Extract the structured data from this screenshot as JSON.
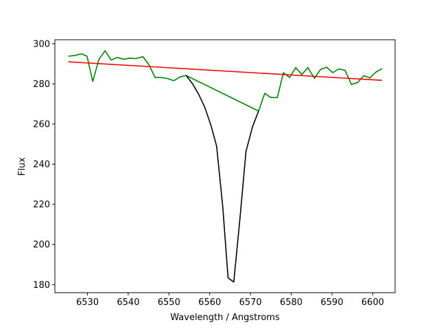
{
  "chart_data": {
    "type": "line",
    "xlabel": "Wavelength / Angstroms",
    "ylabel": "Flux",
    "xlim": [
      6522,
      6605.5
    ],
    "ylim": [
      176,
      302
    ],
    "grid": false,
    "x_ticks": [
      6530,
      6540,
      6550,
      6560,
      6570,
      6580,
      6590,
      6600
    ],
    "y_ticks": [
      180,
      200,
      220,
      240,
      260,
      280,
      300
    ],
    "series": [
      {
        "color": "#008000",
        "points": [
          [
            6525.3,
            293.8
          ],
          [
            6527.0,
            294.2
          ],
          [
            6528.5,
            295.0
          ],
          [
            6529.9,
            293.8
          ],
          [
            6531.3,
            281.2
          ],
          [
            6532.8,
            292.2
          ],
          [
            6534.3,
            296.5
          ],
          [
            6535.8,
            291.9
          ],
          [
            6537.3,
            293.2
          ],
          [
            6538.8,
            292.3
          ],
          [
            6540.3,
            292.8
          ],
          [
            6541.9,
            292.6
          ],
          [
            6543.6,
            293.6
          ],
          [
            6545.1,
            289.5
          ],
          [
            6546.6,
            283.2
          ],
          [
            6548.1,
            283.2
          ],
          [
            6549.6,
            282.7
          ],
          [
            6551.2,
            281.6
          ],
          [
            6552.7,
            283.5
          ],
          [
            6554.2,
            284.2
          ],
          [
            6572.0,
            266.5
          ],
          [
            6573.5,
            275.3
          ],
          [
            6575.0,
            273.2
          ],
          [
            6576.6,
            273.2
          ],
          [
            6578.1,
            285.6
          ],
          [
            6579.6,
            283.2
          ],
          [
            6581.1,
            288.1
          ],
          [
            6582.6,
            284.7
          ],
          [
            6584.1,
            288.1
          ],
          [
            6585.7,
            282.8
          ],
          [
            6587.2,
            287.2
          ],
          [
            6588.7,
            288.3
          ],
          [
            6590.2,
            285.6
          ],
          [
            6591.7,
            287.5
          ],
          [
            6593.2,
            286.8
          ],
          [
            6594.8,
            279.7
          ],
          [
            6596.3,
            280.7
          ],
          [
            6597.8,
            284.1
          ],
          [
            6599.3,
            283.0
          ],
          [
            6600.8,
            285.9
          ],
          [
            6602.3,
            287.6
          ]
        ]
      },
      {
        "color": "#000000",
        "points": [
          [
            6554.2,
            284.2
          ],
          [
            6555.8,
            280.0
          ],
          [
            6557.3,
            274.8
          ],
          [
            6558.8,
            268.3
          ],
          [
            6560.3,
            259.4
          ],
          [
            6561.7,
            249.0
          ],
          [
            6563.2,
            219.0
          ],
          [
            6564.5,
            183.4
          ],
          [
            6565.9,
            181.3
          ],
          [
            6567.4,
            212.5
          ],
          [
            6568.9,
            246.3
          ],
          [
            6570.5,
            258.6
          ],
          [
            6572.0,
            266.5
          ]
        ]
      },
      {
        "color": "#ff0000",
        "points": [
          [
            6525.3,
            291.0
          ],
          [
            6602.3,
            281.8
          ]
        ]
      }
    ]
  }
}
